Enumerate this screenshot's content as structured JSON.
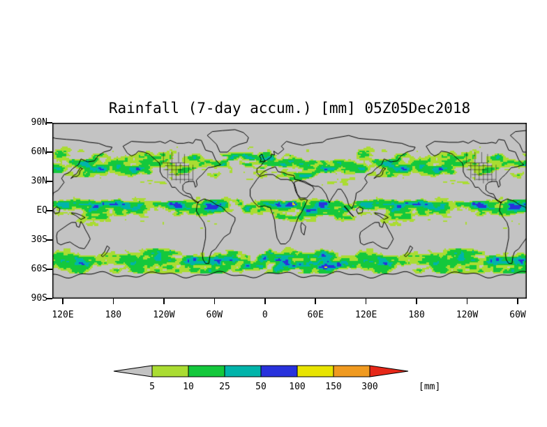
{
  "title": "Rainfall (7-day accum.) [mm] 05Z05Dec2018",
  "map": {
    "background_color": "#c3c3c3",
    "outline_color": "#000000",
    "y_axis_labels": [
      "90N",
      "60N",
      "30N",
      "EQ",
      "30S",
      "60S",
      "90S"
    ],
    "x_axis_labels": [
      "120E",
      "180",
      "120W",
      "60W",
      "0",
      "60E",
      "120E",
      "180",
      "120W",
      "60W"
    ]
  },
  "legend": {
    "unit_label": "[mm]",
    "tick_labels": [
      "5",
      "10",
      "25",
      "50",
      "100",
      "150",
      "300"
    ],
    "segment_colors": [
      "#c3c3c3",
      "#aadc32",
      "#14c83c",
      "#00b4aa",
      "#2832dc",
      "#e8e400",
      "#f09a20",
      "#e62819"
    ]
  },
  "chart_data": {
    "type": "heatmap",
    "title": "Rainfall (7-day accum.) [mm] 05Z05Dec2018",
    "variable": "Rainfall, 7-day accumulation",
    "units": "mm",
    "valid_time": "05Z05Dec2018",
    "lat_ticks": [
      "90N",
      "60N",
      "30N",
      "EQ",
      "30S",
      "60S",
      "90S"
    ],
    "lon_ticks": [
      "120E",
      "180",
      "120W",
      "60W",
      "0",
      "60E",
      "120E",
      "180",
      "120W",
      "60W"
    ],
    "lat_range": [
      -90,
      90
    ],
    "lon_span_degrees": 540,
    "projection": "equirectangular world map with repeated longitudes",
    "grid": false,
    "color_scale": {
      "thresholds": [
        5,
        10,
        25,
        50,
        100,
        150,
        300
      ],
      "bins": [
        {
          "range": "< 5",
          "color": "#c3c3c3"
        },
        {
          "range": "5-10",
          "color": "#aadc32"
        },
        {
          "range": "10-25",
          "color": "#14c83c"
        },
        {
          "range": "25-50",
          "color": "#00b4aa"
        },
        {
          "range": "50-100",
          "color": "#2832dc"
        },
        {
          "range": "100-150",
          "color": "#e8e400"
        },
        {
          "range": "150-300",
          "color": "#f09a20"
        },
        {
          "range": "> 300",
          "color": "#e62819"
        }
      ]
    }
  }
}
